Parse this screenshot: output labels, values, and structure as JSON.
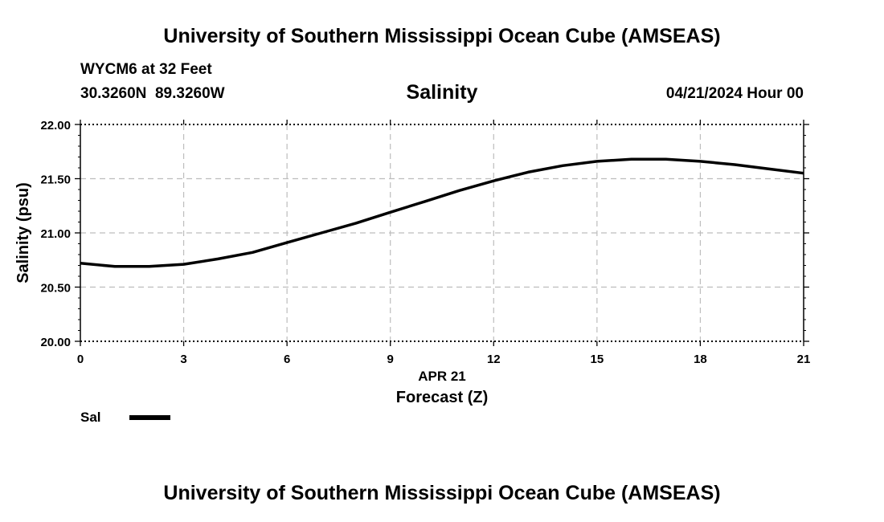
{
  "header": {
    "title": "University of Southern Mississippi Ocean Cube (AMSEAS)",
    "station": "WYCM6 at 32 Feet",
    "coords": "30.3260N  89.3260W",
    "chart_title": "Salinity",
    "datetime": "04/21/2024 Hour 00"
  },
  "footer": {
    "title": "University of Southern Mississippi Ocean Cube (AMSEAS)"
  },
  "legend": {
    "label": "Sal",
    "color": "#000000"
  },
  "chart_data": {
    "type": "line",
    "title": "Salinity",
    "xlabel": "Forecast (Z)",
    "xsublabel": "APR 21",
    "ylabel": "Salinity (psu)",
    "xlim": [
      0,
      21
    ],
    "ylim": [
      20.0,
      22.0
    ],
    "xticks": [
      0,
      3,
      6,
      9,
      12,
      15,
      18,
      21
    ],
    "yticks": [
      20.0,
      20.5,
      21.0,
      21.5,
      22.0
    ],
    "ytick_labels": [
      "20.00",
      "20.50",
      "21.00",
      "21.50",
      "22.00"
    ],
    "grid": true,
    "series": [
      {
        "name": "Sal",
        "x": [
          0,
          1,
          2,
          3,
          4,
          5,
          6,
          7,
          8,
          9,
          10,
          11,
          12,
          13,
          14,
          15,
          16,
          17,
          18,
          19,
          20,
          21
        ],
        "values": [
          20.72,
          20.69,
          20.69,
          20.71,
          20.76,
          20.82,
          20.91,
          21.0,
          21.09,
          21.19,
          21.29,
          21.39,
          21.48,
          21.56,
          21.62,
          21.66,
          21.68,
          21.68,
          21.66,
          21.63,
          21.59,
          21.55
        ]
      }
    ]
  }
}
